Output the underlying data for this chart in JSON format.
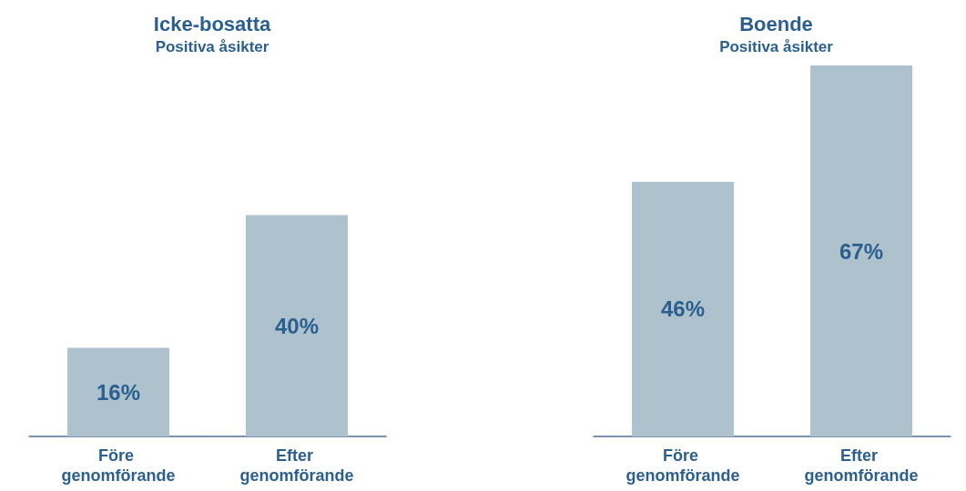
{
  "chart_data": [
    {
      "type": "bar",
      "title": "Icke-bosatta",
      "subtitle": "Positiva åsikter",
      "categories": [
        "Före genomförande",
        "Efter genomförande"
      ],
      "values": [
        16,
        40
      ],
      "value_labels": [
        "16%",
        "40%"
      ],
      "color": "#adc2cd"
    },
    {
      "type": "bar",
      "title": "Boende",
      "subtitle": "Positiva åsikter",
      "categories": [
        "Före genomförande",
        "Efter genomförande"
      ],
      "values": [
        46,
        67
      ],
      "value_labels": [
        "46%",
        "67%"
      ],
      "color": "#adc2cd"
    }
  ]
}
